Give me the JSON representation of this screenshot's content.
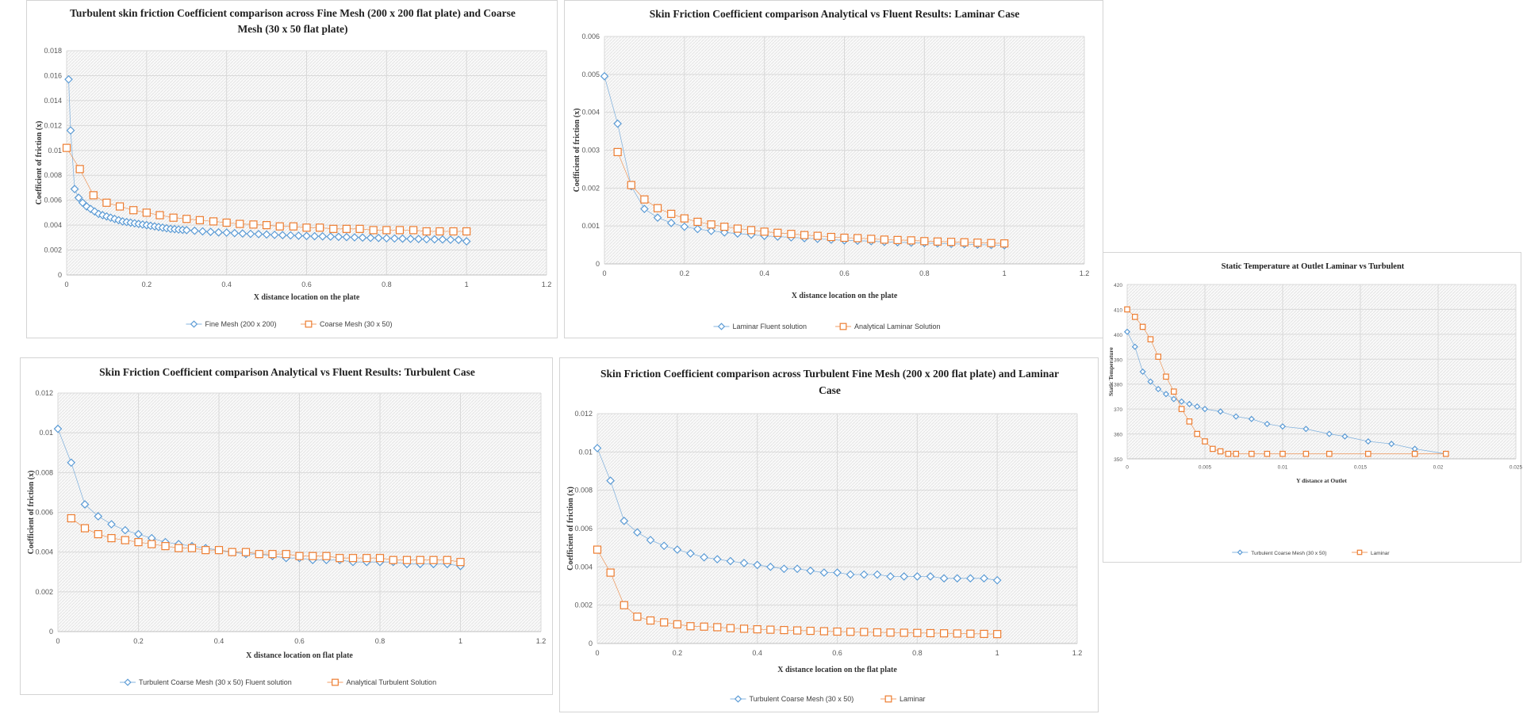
{
  "colors": {
    "blue": "#5b9bd5",
    "orange": "#ed7d31",
    "grid": "#d9d9d9",
    "plot_bg": "#f2f2f2"
  },
  "chart_data": [
    {
      "id": "c1",
      "type": "scatter",
      "title_lines": [
        "Turbulent skin friction Coefficient comparison across Fine Mesh (200 x 200 flat plate) and Coarse",
        "Mesh (30 x 50 flat plate)"
      ],
      "xlabel": "X distance location  on the plate",
      "ylabel": "Coefficient  of friction  (x)",
      "xlim": [
        0,
        1.2
      ],
      "ylim": [
        0,
        0.018
      ],
      "xticks": [
        "0",
        "0.2",
        "0.4",
        "0.6",
        "0.8",
        "1",
        "1.2"
      ],
      "yticks": [
        "0",
        "0.002",
        "0.004",
        "0.006",
        "0.008",
        "0.01",
        "0.012",
        "0.014",
        "0.016",
        "0.018"
      ],
      "series": [
        {
          "name": "Fine Mesh (200 x 200)",
          "marker": "diamond",
          "color": "blue",
          "x": [
            0.005,
            0.01,
            0.02,
            0.03,
            0.04,
            0.05,
            0.06,
            0.07,
            0.08,
            0.09,
            0.1,
            0.11,
            0.12,
            0.13,
            0.14,
            0.15,
            0.16,
            0.17,
            0.18,
            0.19,
            0.2,
            0.21,
            0.22,
            0.23,
            0.24,
            0.25,
            0.26,
            0.27,
            0.28,
            0.29,
            0.3,
            0.32,
            0.34,
            0.36,
            0.38,
            0.4,
            0.42,
            0.44,
            0.46,
            0.48,
            0.5,
            0.52,
            0.54,
            0.56,
            0.58,
            0.6,
            0.62,
            0.64,
            0.66,
            0.68,
            0.7,
            0.72,
            0.74,
            0.76,
            0.78,
            0.8,
            0.82,
            0.84,
            0.86,
            0.88,
            0.9,
            0.92,
            0.94,
            0.96,
            0.98,
            1.0
          ],
          "y": [
            0.0157,
            0.0116,
            0.0069,
            0.0062,
            0.0058,
            0.0055,
            0.0053,
            0.0051,
            0.0049,
            0.0048,
            0.0047,
            0.0046,
            0.0045,
            0.0044,
            0.0043,
            0.00425,
            0.0042,
            0.00415,
            0.0041,
            0.00405,
            0.004,
            0.00395,
            0.0039,
            0.00385,
            0.0038,
            0.00375,
            0.0037,
            0.00368,
            0.00365,
            0.00362,
            0.0036,
            0.00355,
            0.0035,
            0.00346,
            0.00342,
            0.0034,
            0.00336,
            0.00333,
            0.0033,
            0.00328,
            0.00325,
            0.00322,
            0.0032,
            0.00318,
            0.00315,
            0.00313,
            0.00311,
            0.0031,
            0.00308,
            0.00306,
            0.00304,
            0.00302,
            0.003,
            0.00298,
            0.00297,
            0.00295,
            0.00293,
            0.00292,
            0.0029,
            0.00289,
            0.00287,
            0.00286,
            0.00285,
            0.00283,
            0.00282,
            0.0027
          ]
        },
        {
          "name": "Coarse Mesh (30 x 50)",
          "marker": "square",
          "color": "orange",
          "x": [
            0,
            0.033,
            0.067,
            0.1,
            0.133,
            0.167,
            0.2,
            0.233,
            0.267,
            0.3,
            0.333,
            0.367,
            0.4,
            0.433,
            0.467,
            0.5,
            0.533,
            0.567,
            0.6,
            0.633,
            0.667,
            0.7,
            0.733,
            0.767,
            0.8,
            0.833,
            0.867,
            0.9,
            0.933,
            0.967,
            1.0
          ],
          "y": [
            0.0102,
            0.0085,
            0.0064,
            0.0058,
            0.0055,
            0.0052,
            0.005,
            0.0048,
            0.0046,
            0.0045,
            0.0044,
            0.0043,
            0.0042,
            0.0041,
            0.00405,
            0.004,
            0.0039,
            0.0039,
            0.0038,
            0.0038,
            0.0037,
            0.0037,
            0.0037,
            0.0036,
            0.0036,
            0.0036,
            0.0036,
            0.0035,
            0.0035,
            0.0035,
            0.0035
          ]
        }
      ]
    },
    {
      "id": "c2",
      "type": "scatter",
      "title_lines": [
        "Skin Friction Coefficient comparison Analytical vs Fluent Results: Laminar Case"
      ],
      "xlabel": "X distance location  on the plate",
      "ylabel": "Coefficient  of friction  (x)",
      "xlim": [
        0,
        1.2
      ],
      "ylim": [
        0,
        0.006
      ],
      "xticks": [
        "0",
        "0.2",
        "0.4",
        "0.6",
        "0.8",
        "1",
        "1.2"
      ],
      "yticks": [
        "0",
        "0.001",
        "0.002",
        "0.003",
        "0.004",
        "0.005",
        "0.006"
      ],
      "series": [
        {
          "name": "Laminar Fluent solution",
          "marker": "diamond",
          "color": "blue",
          "x": [
            0,
            0.033,
            0.067,
            0.1,
            0.133,
            0.167,
            0.2,
            0.233,
            0.267,
            0.3,
            0.333,
            0.367,
            0.4,
            0.433,
            0.467,
            0.5,
            0.533,
            0.567,
            0.6,
            0.633,
            0.667,
            0.7,
            0.733,
            0.767,
            0.8,
            0.833,
            0.867,
            0.9,
            0.933,
            0.967,
            1.0
          ],
          "y": [
            0.00495,
            0.0037,
            0.00205,
            0.00145,
            0.00122,
            0.00108,
            0.00098,
            0.00092,
            0.00087,
            0.00083,
            0.0008,
            0.00077,
            0.00074,
            0.00072,
            0.0007,
            0.00068,
            0.00066,
            0.00064,
            0.00062,
            0.00061,
            0.0006,
            0.00058,
            0.00057,
            0.00056,
            0.00055,
            0.00054,
            0.00053,
            0.00052,
            0.00051,
            0.0005,
            0.00049
          ]
        },
        {
          "name": "Analytical Laminar Solution",
          "marker": "square",
          "color": "orange",
          "x": [
            0.033,
            0.067,
            0.1,
            0.133,
            0.167,
            0.2,
            0.233,
            0.267,
            0.3,
            0.333,
            0.367,
            0.4,
            0.433,
            0.467,
            0.5,
            0.533,
            0.567,
            0.6,
            0.633,
            0.667,
            0.7,
            0.733,
            0.767,
            0.8,
            0.833,
            0.867,
            0.9,
            0.933,
            0.967,
            1.0
          ],
          "y": [
            0.00295,
            0.00208,
            0.0017,
            0.00147,
            0.00132,
            0.0012,
            0.00111,
            0.00104,
            0.00098,
            0.00093,
            0.00089,
            0.00085,
            0.00082,
            0.00079,
            0.00076,
            0.00074,
            0.00071,
            0.00069,
            0.00068,
            0.00066,
            0.00064,
            0.00063,
            0.00062,
            0.0006,
            0.00059,
            0.00058,
            0.00057,
            0.00056,
            0.00055,
            0.00054
          ]
        }
      ]
    },
    {
      "id": "c3",
      "type": "scatter",
      "title_lines": [
        "Skin Friction Coefficient comparison Analytical vs Fluent Results: Turbulent Case"
      ],
      "xlabel": "X distance location  on flat plate",
      "ylabel": "Coefficient  of friction  (x)",
      "xlim": [
        0,
        1.2
      ],
      "ylim": [
        0,
        0.012
      ],
      "xticks": [
        "0",
        "0.2",
        "0.4",
        "0.6",
        "0.8",
        "1",
        "1.2"
      ],
      "yticks": [
        "0",
        "0.002",
        "0.004",
        "0.006",
        "0.008",
        "0.01",
        "0.012"
      ],
      "series": [
        {
          "name": "Turbulent Coarse Mesh (30 x 50) Fluent solution",
          "marker": "diamond",
          "color": "blue",
          "x": [
            0,
            0.033,
            0.067,
            0.1,
            0.133,
            0.167,
            0.2,
            0.233,
            0.267,
            0.3,
            0.333,
            0.367,
            0.4,
            0.433,
            0.467,
            0.5,
            0.533,
            0.567,
            0.6,
            0.633,
            0.667,
            0.7,
            0.733,
            0.767,
            0.8,
            0.833,
            0.867,
            0.9,
            0.933,
            0.967,
            1.0
          ],
          "y": [
            0.0102,
            0.0085,
            0.0064,
            0.0058,
            0.0054,
            0.0051,
            0.0049,
            0.0047,
            0.0045,
            0.0044,
            0.0043,
            0.0042,
            0.0041,
            0.004,
            0.0039,
            0.0039,
            0.0038,
            0.0037,
            0.0037,
            0.0036,
            0.0036,
            0.0036,
            0.0035,
            0.0035,
            0.0035,
            0.0035,
            0.0034,
            0.0034,
            0.0034,
            0.0034,
            0.0033
          ]
        },
        {
          "name": "Analytical Turbulent Solution",
          "marker": "square",
          "color": "orange",
          "x": [
            0.033,
            0.067,
            0.1,
            0.133,
            0.167,
            0.2,
            0.233,
            0.267,
            0.3,
            0.333,
            0.367,
            0.4,
            0.433,
            0.467,
            0.5,
            0.533,
            0.567,
            0.6,
            0.633,
            0.667,
            0.7,
            0.733,
            0.767,
            0.8,
            0.833,
            0.867,
            0.9,
            0.933,
            0.967,
            1.0
          ],
          "y": [
            0.0057,
            0.0052,
            0.0049,
            0.0047,
            0.0046,
            0.0045,
            0.0044,
            0.0043,
            0.0042,
            0.0042,
            0.0041,
            0.0041,
            0.004,
            0.004,
            0.0039,
            0.0039,
            0.0039,
            0.0038,
            0.0038,
            0.0038,
            0.0037,
            0.0037,
            0.0037,
            0.0037,
            0.0036,
            0.0036,
            0.0036,
            0.0036,
            0.0036,
            0.0035
          ]
        }
      ]
    },
    {
      "id": "c4",
      "type": "scatter",
      "title_lines": [
        "Skin Friction Coefficient comparison across Turbulent Fine Mesh (200 x 200 flat plate) and Laminar",
        "Case"
      ],
      "xlabel": "X distance location  on the flat plate",
      "ylabel": "Coefficient  of friction  (x)",
      "xlim": [
        0,
        1.2
      ],
      "ylim": [
        0,
        0.012
      ],
      "xticks": [
        "0",
        "0.2",
        "0.4",
        "0.6",
        "0.8",
        "1",
        "1.2"
      ],
      "yticks": [
        "0",
        "0.002",
        "0.004",
        "0.006",
        "0.008",
        "0.01",
        "0.012"
      ],
      "series": [
        {
          "name": "Turbulent Coarse Mesh (30 x 50)",
          "marker": "diamond",
          "color": "blue",
          "x": [
            0,
            0.033,
            0.067,
            0.1,
            0.133,
            0.167,
            0.2,
            0.233,
            0.267,
            0.3,
            0.333,
            0.367,
            0.4,
            0.433,
            0.467,
            0.5,
            0.533,
            0.567,
            0.6,
            0.633,
            0.667,
            0.7,
            0.733,
            0.767,
            0.8,
            0.833,
            0.867,
            0.9,
            0.933,
            0.967,
            1.0
          ],
          "y": [
            0.0102,
            0.0085,
            0.0064,
            0.0058,
            0.0054,
            0.0051,
            0.0049,
            0.0047,
            0.0045,
            0.0044,
            0.0043,
            0.0042,
            0.0041,
            0.004,
            0.0039,
            0.0039,
            0.0038,
            0.0037,
            0.0037,
            0.0036,
            0.0036,
            0.0036,
            0.0035,
            0.0035,
            0.0035,
            0.0035,
            0.0034,
            0.0034,
            0.0034,
            0.0034,
            0.0033
          ]
        },
        {
          "name": "Laminar",
          "marker": "square",
          "color": "orange",
          "x": [
            0,
            0.033,
            0.067,
            0.1,
            0.133,
            0.167,
            0.2,
            0.233,
            0.267,
            0.3,
            0.333,
            0.367,
            0.4,
            0.433,
            0.467,
            0.5,
            0.533,
            0.567,
            0.6,
            0.633,
            0.667,
            0.7,
            0.733,
            0.767,
            0.8,
            0.833,
            0.867,
            0.9,
            0.933,
            0.967,
            1.0
          ],
          "y": [
            0.0049,
            0.0037,
            0.002,
            0.0014,
            0.0012,
            0.0011,
            0.001,
            0.0009,
            0.00088,
            0.00085,
            0.0008,
            0.00077,
            0.00074,
            0.00072,
            0.0007,
            0.00068,
            0.00066,
            0.00064,
            0.00062,
            0.00061,
            0.0006,
            0.00058,
            0.00057,
            0.00056,
            0.00055,
            0.00054,
            0.00053,
            0.00052,
            0.00051,
            0.0005,
            0.00049
          ]
        }
      ]
    },
    {
      "id": "c5",
      "type": "scatter",
      "title_lines": [
        "Static Temperature at Outlet Laminar vs Turbulent"
      ],
      "xlabel": "Y distance at Outlet",
      "ylabel": "Static Temperature",
      "xlim": [
        0,
        0.025
      ],
      "ylim": [
        350,
        420
      ],
      "xticks": [
        "0",
        "0.005",
        "0.01",
        "0.015",
        "0.02",
        "0.025"
      ],
      "yticks": [
        "350",
        "360",
        "370",
        "380",
        "390",
        "400",
        "410",
        "420"
      ],
      "series": [
        {
          "name": "Turbulent Coarse Mesh (30 x 50)",
          "marker": "diamond",
          "color": "blue",
          "x": [
            0,
            0.0005,
            0.001,
            0.0015,
            0.002,
            0.0025,
            0.003,
            0.0035,
            0.004,
            0.0045,
            0.005,
            0.006,
            0.007,
            0.008,
            0.009,
            0.01,
            0.0115,
            0.013,
            0.014,
            0.0155,
            0.017,
            0.0185,
            0.0205
          ],
          "y": [
            401,
            395,
            385,
            381,
            378,
            376,
            374,
            373,
            372,
            371,
            370,
            369,
            367,
            366,
            364,
            363,
            362,
            360,
            359,
            357,
            356,
            354,
            352
          ]
        },
        {
          "name": "Laminar",
          "marker": "square",
          "color": "orange",
          "x": [
            0,
            0.0005,
            0.001,
            0.0015,
            0.002,
            0.0025,
            0.003,
            0.0035,
            0.004,
            0.0045,
            0.005,
            0.0055,
            0.006,
            0.0065,
            0.007,
            0.008,
            0.009,
            0.01,
            0.0115,
            0.013,
            0.0155,
            0.0185,
            0.0205
          ],
          "y": [
            410,
            407,
            403,
            398,
            391,
            383,
            377,
            370,
            365,
            360,
            357,
            354,
            353,
            352,
            352,
            352,
            352,
            352,
            352,
            352,
            352,
            352,
            352
          ]
        }
      ]
    }
  ]
}
